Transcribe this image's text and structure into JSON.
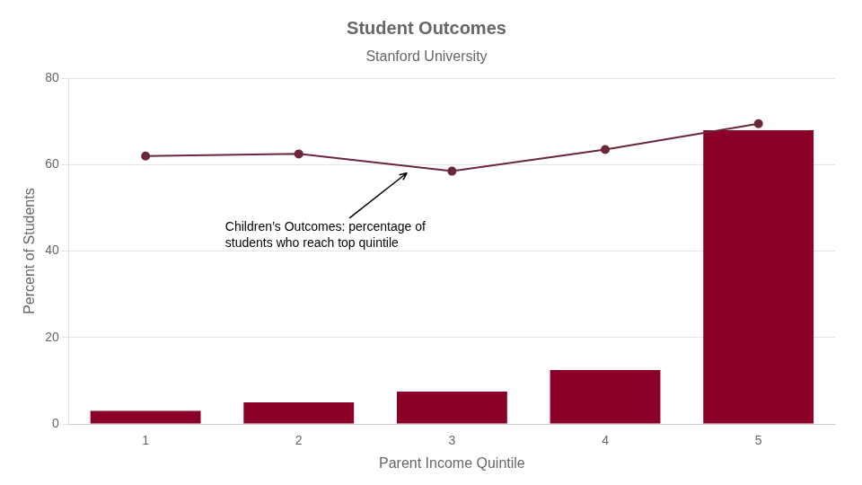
{
  "chart_data": {
    "type": "bar",
    "title": "Student Outcomes",
    "subtitle": "Stanford University",
    "x_label": "Parent Income Quintile",
    "y_label": "Percent of Students",
    "x": [
      1,
      2,
      3,
      4,
      5
    ],
    "series": [
      {
        "type": "bar",
        "color": "#8B0028",
        "values": [
          3.0,
          5.0,
          7.5,
          12.5,
          68.0
        ]
      },
      {
        "type": "line",
        "color": "#6B2737",
        "marker": "circle",
        "values": [
          62.0,
          62.5,
          58.5,
          63.5,
          69.5
        ]
      }
    ],
    "xlim": [
      0.5,
      5.5
    ],
    "xticks": [
      1,
      2,
      3,
      4,
      5
    ],
    "ylim": [
      0,
      80
    ],
    "yticks": [
      0,
      20,
      40,
      60,
      80
    ],
    "grid": true,
    "annotation": {
      "text": "Children’s Outcomes: percentage of\nstudents who reach top quintile",
      "x": 2.72,
      "y": 58.5,
      "text_x": 1.52,
      "text_y": 47.0
    }
  }
}
